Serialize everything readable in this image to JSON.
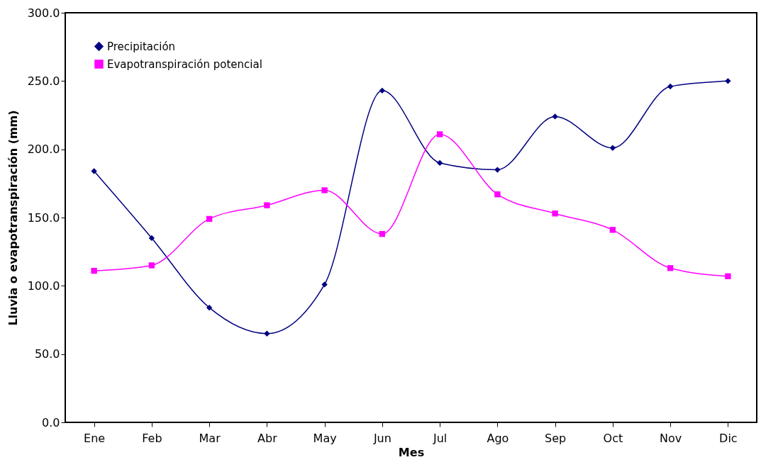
{
  "chart_data": {
    "type": "line",
    "xlabel": "Mes",
    "ylabel": "Lluvia o evapotranspiración (mm)",
    "categories": [
      "Ene",
      "Feb",
      "Mar",
      "Abr",
      "May",
      "Jun",
      "Jul",
      "Ago",
      "Sep",
      "Oct",
      "Nov",
      "Dic"
    ],
    "series": [
      {
        "name": "Precipitación",
        "color": "#000080",
        "marker": "diamond",
        "values": [
          184,
          135,
          84,
          65,
          101,
          243,
          190,
          185,
          224,
          201,
          246,
          250
        ]
      },
      {
        "name": "Evapotranspiración potencial",
        "color": "#ff00ff",
        "marker": "square",
        "values": [
          111,
          115,
          149,
          159,
          170,
          138,
          211,
          167,
          153,
          141,
          113,
          107
        ]
      }
    ],
    "ylim": [
      0,
      300
    ],
    "yticks": [
      {
        "value": 0,
        "label": "0.0"
      },
      {
        "value": 50,
        "label": "50.0"
      },
      {
        "value": 100,
        "label": "100.0"
      },
      {
        "value": 150,
        "label": "150.0"
      },
      {
        "value": 200,
        "label": "200.0"
      },
      {
        "value": 250,
        "label": "250.0"
      },
      {
        "value": 300,
        "label": "300.0"
      }
    ],
    "grid": false,
    "legend": "top left",
    "line_style": "solid"
  }
}
